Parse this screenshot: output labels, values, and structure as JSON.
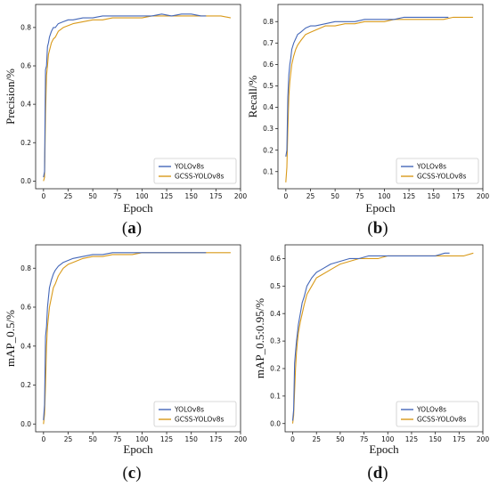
{
  "colors": {
    "yolo": "#4467b8",
    "gcss": "#d99a1a"
  },
  "chart_data": [
    {
      "type": "line",
      "panel": "(a)",
      "panel_letter": "a",
      "xlabel": "Epoch",
      "ylabel": "Precision/%",
      "xlim": [
        -8,
        200
      ],
      "ylim": [
        -0.04,
        0.92
      ],
      "xticks": [
        0,
        25,
        50,
        75,
        100,
        125,
        150,
        175,
        200
      ],
      "yticks": [
        0.0,
        0.2,
        0.4,
        0.6,
        0.8
      ],
      "ytick_labels": [
        "0.0",
        "0.2",
        "0.4",
        "0.6",
        "0.8"
      ],
      "legend_position": "bottom-right",
      "series": [
        {
          "name": "YOLOv8s",
          "x": [
            0,
            1,
            2,
            3,
            4,
            5,
            6,
            8,
            10,
            12,
            15,
            20,
            25,
            30,
            40,
            50,
            60,
            70,
            80,
            90,
            100,
            110,
            120,
            130,
            140,
            150,
            160,
            165
          ],
          "y": [
            0.02,
            0.05,
            0.58,
            0.6,
            0.7,
            0.72,
            0.75,
            0.78,
            0.8,
            0.8,
            0.82,
            0.83,
            0.84,
            0.84,
            0.85,
            0.85,
            0.86,
            0.86,
            0.86,
            0.86,
            0.86,
            0.86,
            0.87,
            0.86,
            0.87,
            0.87,
            0.86,
            0.86
          ]
        },
        {
          "name": "GCSS-YOLOv8s",
          "x": [
            0,
            1,
            2,
            3,
            4,
            5,
            6,
            8,
            10,
            12,
            15,
            20,
            25,
            30,
            40,
            50,
            60,
            70,
            80,
            90,
            100,
            110,
            120,
            130,
            140,
            150,
            160,
            170,
            180,
            190
          ],
          "y": [
            0.0,
            0.02,
            0.35,
            0.55,
            0.6,
            0.66,
            0.68,
            0.72,
            0.74,
            0.75,
            0.78,
            0.8,
            0.81,
            0.82,
            0.83,
            0.84,
            0.84,
            0.85,
            0.85,
            0.85,
            0.85,
            0.86,
            0.86,
            0.86,
            0.86,
            0.86,
            0.86,
            0.86,
            0.86,
            0.85
          ]
        }
      ]
    },
    {
      "type": "line",
      "panel": "(b)",
      "panel_letter": "b",
      "xlabel": "Epoch",
      "ylabel": "Recall/%",
      "xlim": [
        -8,
        200
      ],
      "ylim": [
        0.02,
        0.88
      ],
      "xticks": [
        0,
        25,
        50,
        75,
        100,
        125,
        150,
        175,
        200
      ],
      "yticks": [
        0.1,
        0.2,
        0.3,
        0.4,
        0.5,
        0.6,
        0.7,
        0.8
      ],
      "ytick_labels": [
        "0.1",
        "0.2",
        "0.3",
        "0.4",
        "0.5",
        "0.6",
        "0.7",
        "0.8"
      ],
      "legend_position": "bottom-right",
      "series": [
        {
          "name": "YOLOv8s",
          "x": [
            0,
            1,
            2,
            3,
            4,
            5,
            6,
            8,
            10,
            12,
            15,
            20,
            25,
            30,
            40,
            50,
            60,
            70,
            80,
            90,
            100,
            110,
            120,
            130,
            140,
            150,
            160,
            165
          ],
          "y": [
            0.17,
            0.2,
            0.45,
            0.55,
            0.6,
            0.63,
            0.67,
            0.7,
            0.72,
            0.74,
            0.75,
            0.77,
            0.78,
            0.78,
            0.79,
            0.8,
            0.8,
            0.8,
            0.81,
            0.81,
            0.81,
            0.81,
            0.82,
            0.82,
            0.82,
            0.82,
            0.82,
            0.82
          ]
        },
        {
          "name": "GCSS-YOLOv8s",
          "x": [
            0,
            1,
            2,
            3,
            4,
            5,
            6,
            8,
            10,
            12,
            15,
            20,
            25,
            30,
            40,
            50,
            60,
            70,
            80,
            90,
            100,
            110,
            120,
            130,
            140,
            150,
            160,
            170,
            180,
            190
          ],
          "y": [
            0.05,
            0.12,
            0.3,
            0.45,
            0.52,
            0.56,
            0.6,
            0.64,
            0.67,
            0.69,
            0.71,
            0.74,
            0.75,
            0.76,
            0.78,
            0.78,
            0.79,
            0.79,
            0.8,
            0.8,
            0.8,
            0.81,
            0.81,
            0.81,
            0.81,
            0.81,
            0.81,
            0.82,
            0.82,
            0.82
          ]
        }
      ]
    },
    {
      "type": "line",
      "panel": "(c)",
      "panel_letter": "c",
      "xlabel": "Epoch",
      "ylabel": "mAP_0.5/%",
      "xlim": [
        -8,
        200
      ],
      "ylim": [
        -0.04,
        0.92
      ],
      "xticks": [
        0,
        25,
        50,
        75,
        100,
        125,
        150,
        175,
        200
      ],
      "yticks": [
        0.0,
        0.2,
        0.4,
        0.6,
        0.8
      ],
      "ytick_labels": [
        "0.0",
        "0.2",
        "0.4",
        "0.6",
        "0.8"
      ],
      "legend_position": "bottom-right",
      "series": [
        {
          "name": "YOLOv8s",
          "x": [
            0,
            1,
            2,
            3,
            4,
            5,
            6,
            8,
            10,
            12,
            15,
            20,
            25,
            30,
            40,
            50,
            60,
            70,
            80,
            90,
            100,
            110,
            120,
            130,
            140,
            150,
            160,
            165
          ],
          "y": [
            0.02,
            0.1,
            0.45,
            0.5,
            0.6,
            0.65,
            0.7,
            0.74,
            0.77,
            0.79,
            0.81,
            0.83,
            0.84,
            0.85,
            0.86,
            0.87,
            0.87,
            0.88,
            0.88,
            0.88,
            0.88,
            0.88,
            0.88,
            0.88,
            0.88,
            0.88,
            0.88,
            0.88
          ]
        },
        {
          "name": "GCSS-YOLOv8s",
          "x": [
            0,
            1,
            2,
            3,
            4,
            5,
            6,
            8,
            10,
            12,
            15,
            20,
            25,
            30,
            40,
            50,
            60,
            70,
            80,
            90,
            100,
            110,
            120,
            130,
            140,
            150,
            160,
            170,
            180,
            190
          ],
          "y": [
            0.0,
            0.05,
            0.2,
            0.4,
            0.5,
            0.55,
            0.6,
            0.65,
            0.7,
            0.72,
            0.76,
            0.8,
            0.82,
            0.83,
            0.85,
            0.86,
            0.86,
            0.87,
            0.87,
            0.87,
            0.88,
            0.88,
            0.88,
            0.88,
            0.88,
            0.88,
            0.88,
            0.88,
            0.88,
            0.88
          ]
        }
      ]
    },
    {
      "type": "line",
      "panel": "(d)",
      "panel_letter": "d",
      "xlabel": "Epoch",
      "ylabel": "mAP_0.5:0.95/%",
      "xlim": [
        -8,
        200
      ],
      "ylim": [
        -0.03,
        0.65
      ],
      "xticks": [
        0,
        25,
        50,
        75,
        100,
        125,
        150,
        175,
        200
      ],
      "yticks": [
        0.0,
        0.1,
        0.2,
        0.3,
        0.4,
        0.5,
        0.6
      ],
      "ytick_labels": [
        "0.0",
        "0.1",
        "0.2",
        "0.3",
        "0.4",
        "0.5",
        "0.6"
      ],
      "legend_position": "bottom-right",
      "series": [
        {
          "name": "YOLOv8s",
          "x": [
            0,
            1,
            2,
            3,
            4,
            5,
            6,
            8,
            10,
            12,
            15,
            20,
            25,
            30,
            40,
            50,
            60,
            70,
            80,
            90,
            100,
            110,
            120,
            130,
            140,
            150,
            160,
            165
          ],
          "y": [
            0.01,
            0.05,
            0.22,
            0.26,
            0.3,
            0.33,
            0.36,
            0.4,
            0.44,
            0.46,
            0.5,
            0.53,
            0.55,
            0.56,
            0.58,
            0.59,
            0.6,
            0.6,
            0.61,
            0.61,
            0.61,
            0.61,
            0.61,
            0.61,
            0.61,
            0.61,
            0.62,
            0.62
          ]
        },
        {
          "name": "GCSS-YOLOv8s",
          "x": [
            0,
            1,
            2,
            3,
            4,
            5,
            6,
            8,
            10,
            12,
            15,
            20,
            25,
            30,
            40,
            50,
            60,
            70,
            80,
            90,
            100,
            110,
            120,
            130,
            140,
            150,
            160,
            170,
            180,
            190
          ],
          "y": [
            0.0,
            0.03,
            0.12,
            0.2,
            0.26,
            0.3,
            0.33,
            0.37,
            0.4,
            0.43,
            0.47,
            0.5,
            0.53,
            0.54,
            0.56,
            0.58,
            0.59,
            0.6,
            0.6,
            0.6,
            0.61,
            0.61,
            0.61,
            0.61,
            0.61,
            0.61,
            0.61,
            0.61,
            0.61,
            0.62
          ]
        }
      ]
    }
  ]
}
